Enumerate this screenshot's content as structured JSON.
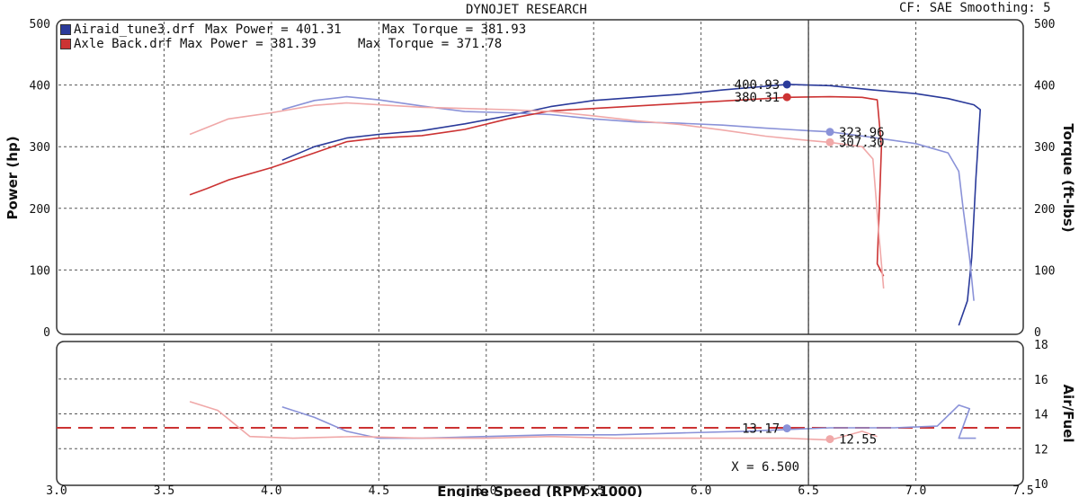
{
  "header": {
    "title": "DYNOJET RESEARCH",
    "settings": "CF: SAE  Smoothing: 5"
  },
  "chart_data": {
    "type": "line",
    "title": "DYNOJET RESEARCH",
    "xlabel": "Engine Speed (RPM x1000)",
    "xlim": [
      3.0,
      7.5
    ],
    "x_ticks": [
      "3.0",
      "3.5",
      "4.0",
      "4.5",
      "5.0",
      "5.5",
      "6.0",
      "6.5",
      "7.0",
      "7.5"
    ],
    "grid": true,
    "cursor_x": 6.5,
    "cursor_label": "X = 6.500",
    "legend": [
      {
        "run": "Airaid_tune3.drf",
        "max_power_label": "Max Power = 401.31",
        "max_torque_label": "Max Torque = 381.93",
        "color": "#2a3a9a"
      },
      {
        "run": "Axle Back.drf",
        "max_power_label": "Max Power = 381.39",
        "max_torque_label": "Max Torque = 371.78",
        "color": "#cc3333"
      }
    ],
    "panels": [
      {
        "name": "power-torque",
        "ylabel_left": "Power (hp)",
        "ylabel_right": "Torque (ft-lbs)",
        "ylim": [
          0,
          500
        ],
        "y_ticks": [
          "0",
          "100",
          "200",
          "300",
          "400",
          "500"
        ],
        "series": [
          {
            "name": "Airaid_tune3.drf",
            "kind": "power",
            "color": "#2a3a9a",
            "x": [
              4.05,
              4.2,
              4.35,
              4.5,
              4.7,
              4.9,
              5.1,
              5.3,
              5.5,
              5.7,
              5.9,
              6.1,
              6.3,
              6.4,
              6.6,
              6.8,
              7.0,
              7.15,
              7.27,
              7.3,
              7.28,
              7.26,
              7.24,
              7.2
            ],
            "y": [
              278,
              300,
              314,
              320,
              326,
              337,
              350,
              365,
              375,
              380,
              385,
              392,
              398,
              401,
              399,
              392,
              386,
              378,
              368,
              360,
              250,
              120,
              50,
              10
            ]
          },
          {
            "name": "Airaid_tune3.drf",
            "kind": "torque",
            "color": "#8a92d8",
            "x": [
              4.05,
              4.2,
              4.35,
              4.5,
              4.7,
              4.9,
              5.1,
              5.3,
              5.5,
              5.7,
              5.9,
              6.1,
              6.3,
              6.5,
              6.6,
              6.8,
              7.0,
              7.15,
              7.2,
              7.22,
              7.25,
              7.27
            ],
            "y": [
              360,
              375,
              381,
              376,
              366,
              357,
              355,
              352,
              345,
              340,
              338,
              335,
              330,
              326,
              324,
              315,
              305,
              290,
              260,
              200,
              120,
              50
            ]
          },
          {
            "name": "Axle Back.drf",
            "kind": "power",
            "color": "#cc3333",
            "x": [
              3.62,
              3.7,
              3.8,
              4.0,
              4.2,
              4.35,
              4.5,
              4.7,
              4.9,
              5.1,
              5.3,
              5.5,
              5.7,
              5.9,
              6.1,
              6.3,
              6.4,
              6.6,
              6.75,
              6.82,
              6.84,
              6.83,
              6.82,
              6.85
            ],
            "y": [
              222,
              232,
              246,
              266,
              290,
              308,
              314,
              318,
              328,
              345,
              358,
              362,
              366,
              370,
              374,
              378,
              380,
              381,
              380,
              376,
              300,
              200,
              110,
              90
            ]
          },
          {
            "name": "Axle Back.drf",
            "kind": "torque",
            "color": "#f0a8a8",
            "x": [
              3.62,
              3.8,
              4.0,
              4.2,
              4.35,
              4.5,
              4.7,
              4.9,
              5.1,
              5.3,
              5.5,
              5.7,
              5.9,
              6.1,
              6.3,
              6.5,
              6.6,
              6.75,
              6.8,
              6.83,
              6.85
            ],
            "y": [
              320,
              345,
              355,
              367,
              371,
              368,
              364,
              362,
              360,
              357,
              350,
              342,
              336,
              327,
              317,
              310,
              307,
              300,
              280,
              150,
              70
            ]
          }
        ],
        "markers": [
          {
            "x": 6.4,
            "y": 400.93,
            "label": "400.93",
            "color": "#2a3a9a",
            "side": "left"
          },
          {
            "x": 6.4,
            "y": 380.31,
            "label": "380.31",
            "color": "#cc3333",
            "side": "left"
          },
          {
            "x": 6.6,
            "y": 323.96,
            "label": "323.96",
            "color": "#8a92d8",
            "side": "right"
          },
          {
            "x": 6.6,
            "y": 307.3,
            "label": "307.30",
            "color": "#f0a8a8",
            "side": "right"
          }
        ]
      },
      {
        "name": "air-fuel",
        "ylabel_right": "Air/Fuel",
        "ylim": [
          10,
          18
        ],
        "y_ticks": [
          "10",
          "12",
          "14",
          "16",
          "18"
        ],
        "reference_line": 13.2,
        "series": [
          {
            "name": "Airaid_tune3.drf",
            "kind": "afr",
            "color": "#8a92d8",
            "x": [
              4.05,
              4.2,
              4.35,
              4.5,
              4.7,
              5.0,
              5.3,
              5.6,
              5.9,
              6.2,
              6.4,
              6.6,
              6.9,
              7.1,
              7.2,
              7.25,
              7.2,
              7.28
            ],
            "y": [
              14.4,
              13.8,
              13.0,
              12.6,
              12.6,
              12.7,
              12.8,
              12.8,
              12.9,
              13.0,
              13.1,
              13.2,
              13.2,
              13.3,
              14.5,
              14.3,
              12.6,
              12.6
            ]
          },
          {
            "name": "Axle Back.drf",
            "kind": "afr",
            "color": "#f0a8a8",
            "x": [
              3.62,
              3.75,
              3.9,
              4.1,
              4.4,
              4.7,
              5.0,
              5.3,
              5.6,
              5.9,
              6.2,
              6.4,
              6.6,
              6.75,
              6.82
            ],
            "y": [
              14.7,
              14.2,
              12.7,
              12.6,
              12.7,
              12.6,
              12.6,
              12.7,
              12.6,
              12.6,
              12.6,
              12.6,
              12.5,
              13.0,
              12.7
            ]
          }
        ],
        "markers": [
          {
            "x": 6.4,
            "y": 13.17,
            "label": "13.17",
            "color": "#8a92d8",
            "side": "left"
          },
          {
            "x": 6.6,
            "y": 12.55,
            "label": "12.55",
            "color": "#f0a8a8",
            "side": "right"
          }
        ]
      }
    ]
  }
}
